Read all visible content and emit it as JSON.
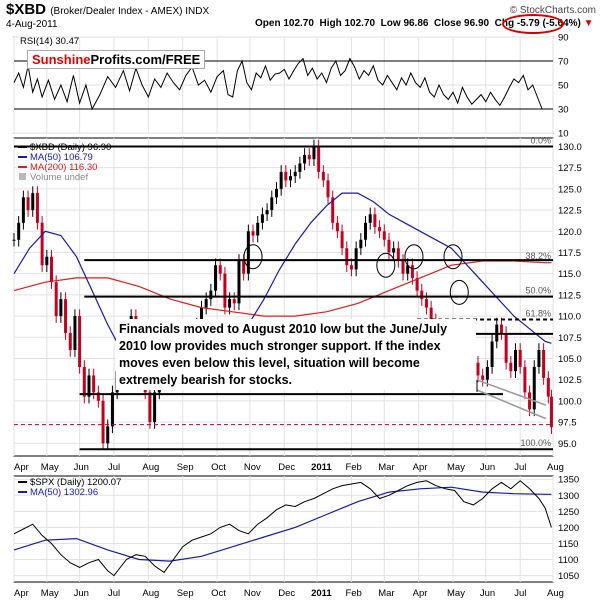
{
  "header": {
    "symbol": "$XBD",
    "name": "(Broker/Dealer Index - AMEX) INDX",
    "date": "4-Aug-2011",
    "open_label": "Open",
    "open": "102.70",
    "high_label": "High",
    "high": "102.70",
    "low_label": "Low",
    "low": "96.86",
    "close_label": "Close",
    "close": "96.90",
    "chg_label": "Chg",
    "chg": "-5.79",
    "chg_pct": "(-5.64%)",
    "credit": "© StockCharts.com"
  },
  "brand": {
    "part1": "Sunshine",
    "part2": "Profits.com/FREE"
  },
  "annotation": "Financials moved to August 2010 low but the June/July 2010 low provides much stronger support. If the index moves even below this level, situation will become extremely bearish for stocks.",
  "colors": {
    "price_down": "#c00020",
    "price_up": "#000000",
    "ma50": "#1a1aa8",
    "ma200": "#d42020",
    "highlight": "#d40000"
  },
  "chart_data": [
    {
      "type": "line",
      "title": "RSI(14) 30.47",
      "legend": "RSI(14) 30.47",
      "ylim": [
        10,
        90
      ],
      "yticks": [
        "90",
        "70",
        "50",
        "30",
        "10"
      ],
      "reference_lines": [
        70,
        30
      ],
      "x": [
        0,
        3,
        6,
        9,
        12,
        15,
        18,
        22,
        26,
        30,
        34,
        38,
        42,
        46,
        50,
        55,
        60,
        65,
        70,
        74,
        78,
        82,
        86,
        90,
        94,
        98,
        102,
        106,
        110,
        114,
        118,
        122,
        126,
        130,
        134,
        137,
        140,
        143,
        146,
        149,
        152,
        155,
        158,
        161,
        164,
        167,
        170,
        173,
        176,
        179,
        182,
        185,
        188,
        191,
        194,
        197,
        200,
        203,
        206,
        209,
        212,
        215,
        218,
        221,
        224,
        227,
        230,
        233,
        236,
        239,
        242,
        245,
        248,
        251,
        254,
        257,
        260,
        263,
        266,
        269,
        272,
        275,
        278,
        281,
        284,
        287,
        290,
        293,
        296,
        299,
        302,
        305,
        308,
        311,
        314,
        317,
        320,
        323,
        326,
        329,
        332,
        335,
        338
      ],
      "values": [
        52,
        60,
        48,
        66,
        44,
        55,
        40,
        54,
        38,
        50,
        36,
        58,
        35,
        50,
        30,
        42,
        57,
        48,
        62,
        45,
        64,
        50,
        40,
        55,
        48,
        60,
        52,
        46,
        58,
        65,
        50,
        54,
        44,
        57,
        62,
        42,
        40,
        62,
        70,
        52,
        46,
        60,
        56,
        66,
        54,
        59,
        60,
        63,
        55,
        62,
        68,
        72,
        58,
        64,
        55,
        60,
        52,
        64,
        70,
        58,
        62,
        72,
        65,
        55,
        62,
        58,
        66,
        54,
        50,
        58,
        52,
        46,
        56,
        50,
        60,
        52,
        48,
        56,
        44,
        40,
        50,
        42,
        38,
        44,
        35,
        48,
        40,
        34,
        38,
        42,
        36,
        44,
        38,
        33,
        40,
        48,
        55,
        52,
        58,
        46,
        50,
        40,
        30
      ]
    },
    {
      "type": "candlestick",
      "title": "$XBD (Daily) 96.90",
      "legend": [
        {
          "name": "$XBD (Daily) 96.90",
          "color": "#000000"
        },
        {
          "name": "MA(50) 106.79",
          "color": "#1a1aa8"
        },
        {
          "name": "MA(200) 116.30",
          "color": "#d42020"
        },
        {
          "name": "Volume undef",
          "color": "#888888"
        }
      ],
      "ylim": [
        93.5,
        131
      ],
      "yticks": [
        "130.0",
        "127.5",
        "125.0",
        "122.5",
        "120.0",
        "117.5",
        "115.0",
        "112.5",
        "110.0",
        "107.5",
        "105.0",
        "102.5",
        "100.0",
        "97.5",
        "95.0"
      ],
      "x_labels": [
        "Apr",
        "May",
        "Jun",
        "Jul",
        "Aug",
        "Sep",
        "Oct",
        "Nov",
        "Dec",
        "2011",
        "Feb",
        "Mar",
        "Apr",
        "May",
        "Jun",
        "Jul",
        "Aug"
      ],
      "x_label_pos": [
        0,
        21,
        42,
        64,
        86,
        108,
        130,
        151,
        173,
        194,
        216,
        237,
        259,
        281,
        302,
        324,
        345
      ],
      "x_max": 345,
      "fib_levels": [
        {
          "label": "0.0%",
          "value": 130.0
        },
        {
          "label": "38.2%",
          "value": 116.4
        },
        {
          "label": "50.0%",
          "value": 112.3
        },
        {
          "label": "61.8%",
          "value": 109.6
        },
        {
          "label": "100.0%",
          "value": 94.3
        }
      ],
      "close_x": [
        0,
        3,
        6,
        9,
        12,
        15,
        18,
        21,
        24,
        27,
        30,
        33,
        36,
        39,
        42,
        45,
        48,
        51,
        54,
        57,
        60,
        63,
        66,
        69,
        72,
        75,
        78,
        81,
        84,
        87,
        90,
        93,
        96,
        99,
        102,
        105,
        108,
        111,
        114,
        117,
        120,
        123,
        126,
        129,
        132,
        135,
        138,
        141,
        144,
        147,
        150,
        153,
        156,
        159,
        162,
        165,
        168,
        171,
        174,
        177,
        180,
        183,
        186,
        189,
        192,
        195,
        198,
        201,
        204,
        207,
        210,
        213,
        216,
        219,
        222,
        225,
        228,
        231,
        234,
        237,
        240,
        243,
        246,
        249,
        252,
        255,
        258,
        261,
        264,
        267,
        270,
        273,
        276,
        279,
        282,
        285,
        288,
        291,
        294,
        297,
        300,
        303,
        306,
        309,
        312,
        315,
        318,
        321,
        324,
        327,
        330,
        333,
        336,
        339,
        342,
        344
      ],
      "close": [
        119,
        121,
        124,
        122.5,
        124.5,
        121,
        116,
        117,
        114,
        110,
        112,
        108,
        106,
        110,
        104,
        100.5,
        103,
        101,
        100,
        95,
        97,
        101,
        103.5,
        104,
        106,
        110,
        108,
        103,
        101,
        97.5,
        101,
        103,
        106,
        104.5,
        103.5,
        106,
        103.5,
        107.5,
        108.5,
        109,
        111,
        112,
        113,
        116,
        115,
        111,
        112,
        111.5,
        116.5,
        115,
        120,
        119.5,
        121,
        122,
        122.5,
        124,
        125,
        127,
        126,
        126.5,
        127,
        128,
        129,
        128.5,
        130,
        127,
        126,
        124,
        121,
        120,
        118,
        116,
        115.5,
        118,
        119,
        121,
        122,
        120.5,
        120,
        119,
        117.5,
        118,
        116.5,
        115,
        116,
        114.5,
        113,
        112,
        111,
        109.5,
        108.5,
        108,
        107,
        106.5,
        106,
        108,
        108,
        106,
        104.5,
        103,
        102.5,
        104,
        107,
        109,
        108,
        104.5,
        103.5,
        106,
        104,
        101,
        99,
        104,
        106,
        102.7,
        100.5,
        96.9
      ],
      "ma50_x": [
        0,
        10,
        20,
        30,
        40,
        50,
        60,
        70,
        80,
        90,
        100,
        110,
        120,
        130,
        140,
        150,
        160,
        170,
        180,
        190,
        200,
        210,
        220,
        230,
        240,
        250,
        260,
        270,
        280,
        290,
        300,
        310,
        320,
        330,
        340,
        344
      ],
      "ma50": [
        115,
        118,
        120,
        119.5,
        117,
        113,
        109,
        105.5,
        103.5,
        102.5,
        102.5,
        103.5,
        104.5,
        105.5,
        107,
        109,
        112,
        115.5,
        118.5,
        121,
        123,
        124.5,
        124.5,
        123.5,
        122,
        121,
        120,
        119,
        118,
        116,
        114,
        112,
        110,
        108.5,
        107,
        106.79
      ],
      "ma200_x": [
        0,
        20,
        40,
        60,
        80,
        100,
        120,
        140,
        160,
        180,
        200,
        220,
        240,
        260,
        280,
        300,
        320,
        340,
        344
      ],
      "ma200": [
        113,
        114,
        114.5,
        114.5,
        113.5,
        112,
        111,
        110.5,
        110,
        110,
        110.5,
        111.5,
        113,
        114.5,
        116,
        116.5,
        116.5,
        116.3,
        116.3
      ],
      "support_lines": [
        {
          "value": 116.6,
          "x0": 45,
          "x1": 345
        },
        {
          "value": 112.3,
          "x0": 45,
          "x1": 345
        },
        {
          "value": 107.9,
          "x0": 108,
          "x1": 345
        },
        {
          "value": 109.6,
          "x0": 258,
          "x1": 345,
          "dashed": true
        },
        {
          "value": 100.8,
          "x0": 42,
          "x1": 313
        },
        {
          "value": 97.2,
          "x0": 0,
          "x1": 345,
          "dashed": true,
          "red": true
        },
        {
          "value": 130.0,
          "x0": 0,
          "x1": 345
        },
        {
          "value": 94.3,
          "x0": 42,
          "x1": 345
        }
      ],
      "circles": [
        {
          "x": 153,
          "y": 117
        },
        {
          "x": 238,
          "y": 116
        },
        {
          "x": 256,
          "y": 117
        },
        {
          "x": 281,
          "y": 117
        },
        {
          "x": 285,
          "y": 112.8
        }
      ]
    },
    {
      "type": "line",
      "title": "$SPX (Daily) 1200.07",
      "legend": [
        {
          "name": "$SPX (Daily) 1200.07",
          "color": "#000000"
        },
        {
          "name": "MA(50) 1302.96",
          "color": "#1a1aa8"
        }
      ],
      "ylim": [
        1030,
        1360
      ],
      "yticks": [
        "1350",
        "1300",
        "1250",
        "1200",
        "1150",
        "1100",
        "1050"
      ],
      "x_labels": [
        "Apr",
        "May",
        "Jun",
        "Jul",
        "Aug",
        "Sep",
        "Oct",
        "Nov",
        "Dec",
        "2011",
        "Feb",
        "Mar",
        "Apr",
        "May",
        "Jun",
        "Jul",
        "Aug"
      ],
      "x": [
        0,
        6,
        12,
        18,
        24,
        30,
        36,
        42,
        48,
        54,
        60,
        64,
        68,
        72,
        78,
        84,
        90,
        96,
        102,
        108,
        114,
        120,
        126,
        132,
        138,
        144,
        150,
        156,
        162,
        168,
        174,
        180,
        186,
        192,
        198,
        204,
        210,
        216,
        222,
        228,
        234,
        240,
        246,
        252,
        258,
        264,
        270,
        276,
        282,
        288,
        294,
        300,
        306,
        312,
        318,
        324,
        330,
        336,
        340,
        344
      ],
      "values": [
        1180,
        1195,
        1210,
        1175,
        1150,
        1115,
        1090,
        1075,
        1090,
        1100,
        1065,
        1050,
        1075,
        1100,
        1115,
        1110,
        1080,
        1060,
        1100,
        1140,
        1160,
        1170,
        1180,
        1200,
        1210,
        1190,
        1180,
        1210,
        1230,
        1255,
        1270,
        1265,
        1280,
        1290,
        1305,
        1320,
        1330,
        1335,
        1340,
        1320,
        1290,
        1300,
        1315,
        1330,
        1340,
        1345,
        1330,
        1320,
        1315,
        1280,
        1270,
        1290,
        1320,
        1340,
        1320,
        1345,
        1320,
        1290,
        1260,
        1200
      ],
      "ma50_x": [
        0,
        20,
        40,
        60,
        80,
        100,
        120,
        140,
        160,
        180,
        200,
        220,
        240,
        260,
        280,
        300,
        320,
        340,
        344
      ],
      "ma50": [
        1130,
        1160,
        1165,
        1130,
        1100,
        1095,
        1110,
        1140,
        1170,
        1200,
        1240,
        1280,
        1310,
        1320,
        1325,
        1310,
        1305,
        1303,
        1302.96
      ]
    }
  ]
}
